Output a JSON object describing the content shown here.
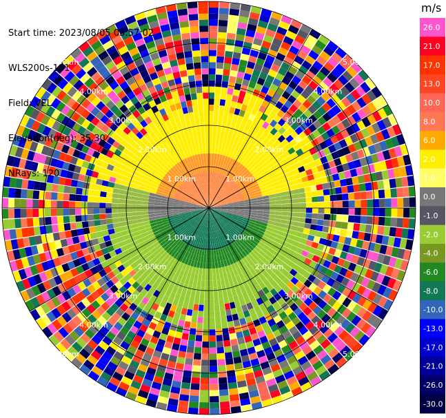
{
  "header": {
    "start_time": "Start time: 2023/08/05 05:57:02",
    "instrument": "WLS200s-181",
    "field": "Field: VEL",
    "elevation": "Elevation(deg): 35.30",
    "nrays": "NRays: 120"
  },
  "chart_data": {
    "type": "heatmap",
    "projection": "polar PPI",
    "field": "VEL",
    "nrays": 120,
    "range_rings_km": [
      1.0,
      2.0,
      3.0,
      4.0,
      5.0
    ],
    "range_labels": [
      "1.00km",
      "2.00km",
      "3.00km",
      "4.00km",
      "5.00km"
    ],
    "max_range_km": 5.0,
    "colorbar": {
      "unit": "m/s",
      "ticks": [
        "26.0",
        "21.0",
        "17.0",
        "13.0",
        "10.0",
        "8.0",
        "6.0",
        "2.0",
        "1.0",
        "0.0",
        "-1.0",
        "-2.0",
        "-4.0",
        "-6.0",
        "-8.0",
        "-10.0",
        "-13.0",
        "-17.0",
        "-21.0",
        "-26.0",
        "-30.0"
      ],
      "colors": [
        "#ff55cc",
        "#ff0022",
        "#ff3300",
        "#ff4422",
        "#ff6655",
        "#ff7755",
        "#ffaa00",
        "#ffee00",
        "#ffff66",
        "#777777",
        "#555566",
        "#99cc33",
        "#779922",
        "#228822",
        "#117755",
        "#3366bb",
        "#0000ff",
        "#0000cc",
        "#000099",
        "#000066",
        "#000044"
      ]
    }
  }
}
